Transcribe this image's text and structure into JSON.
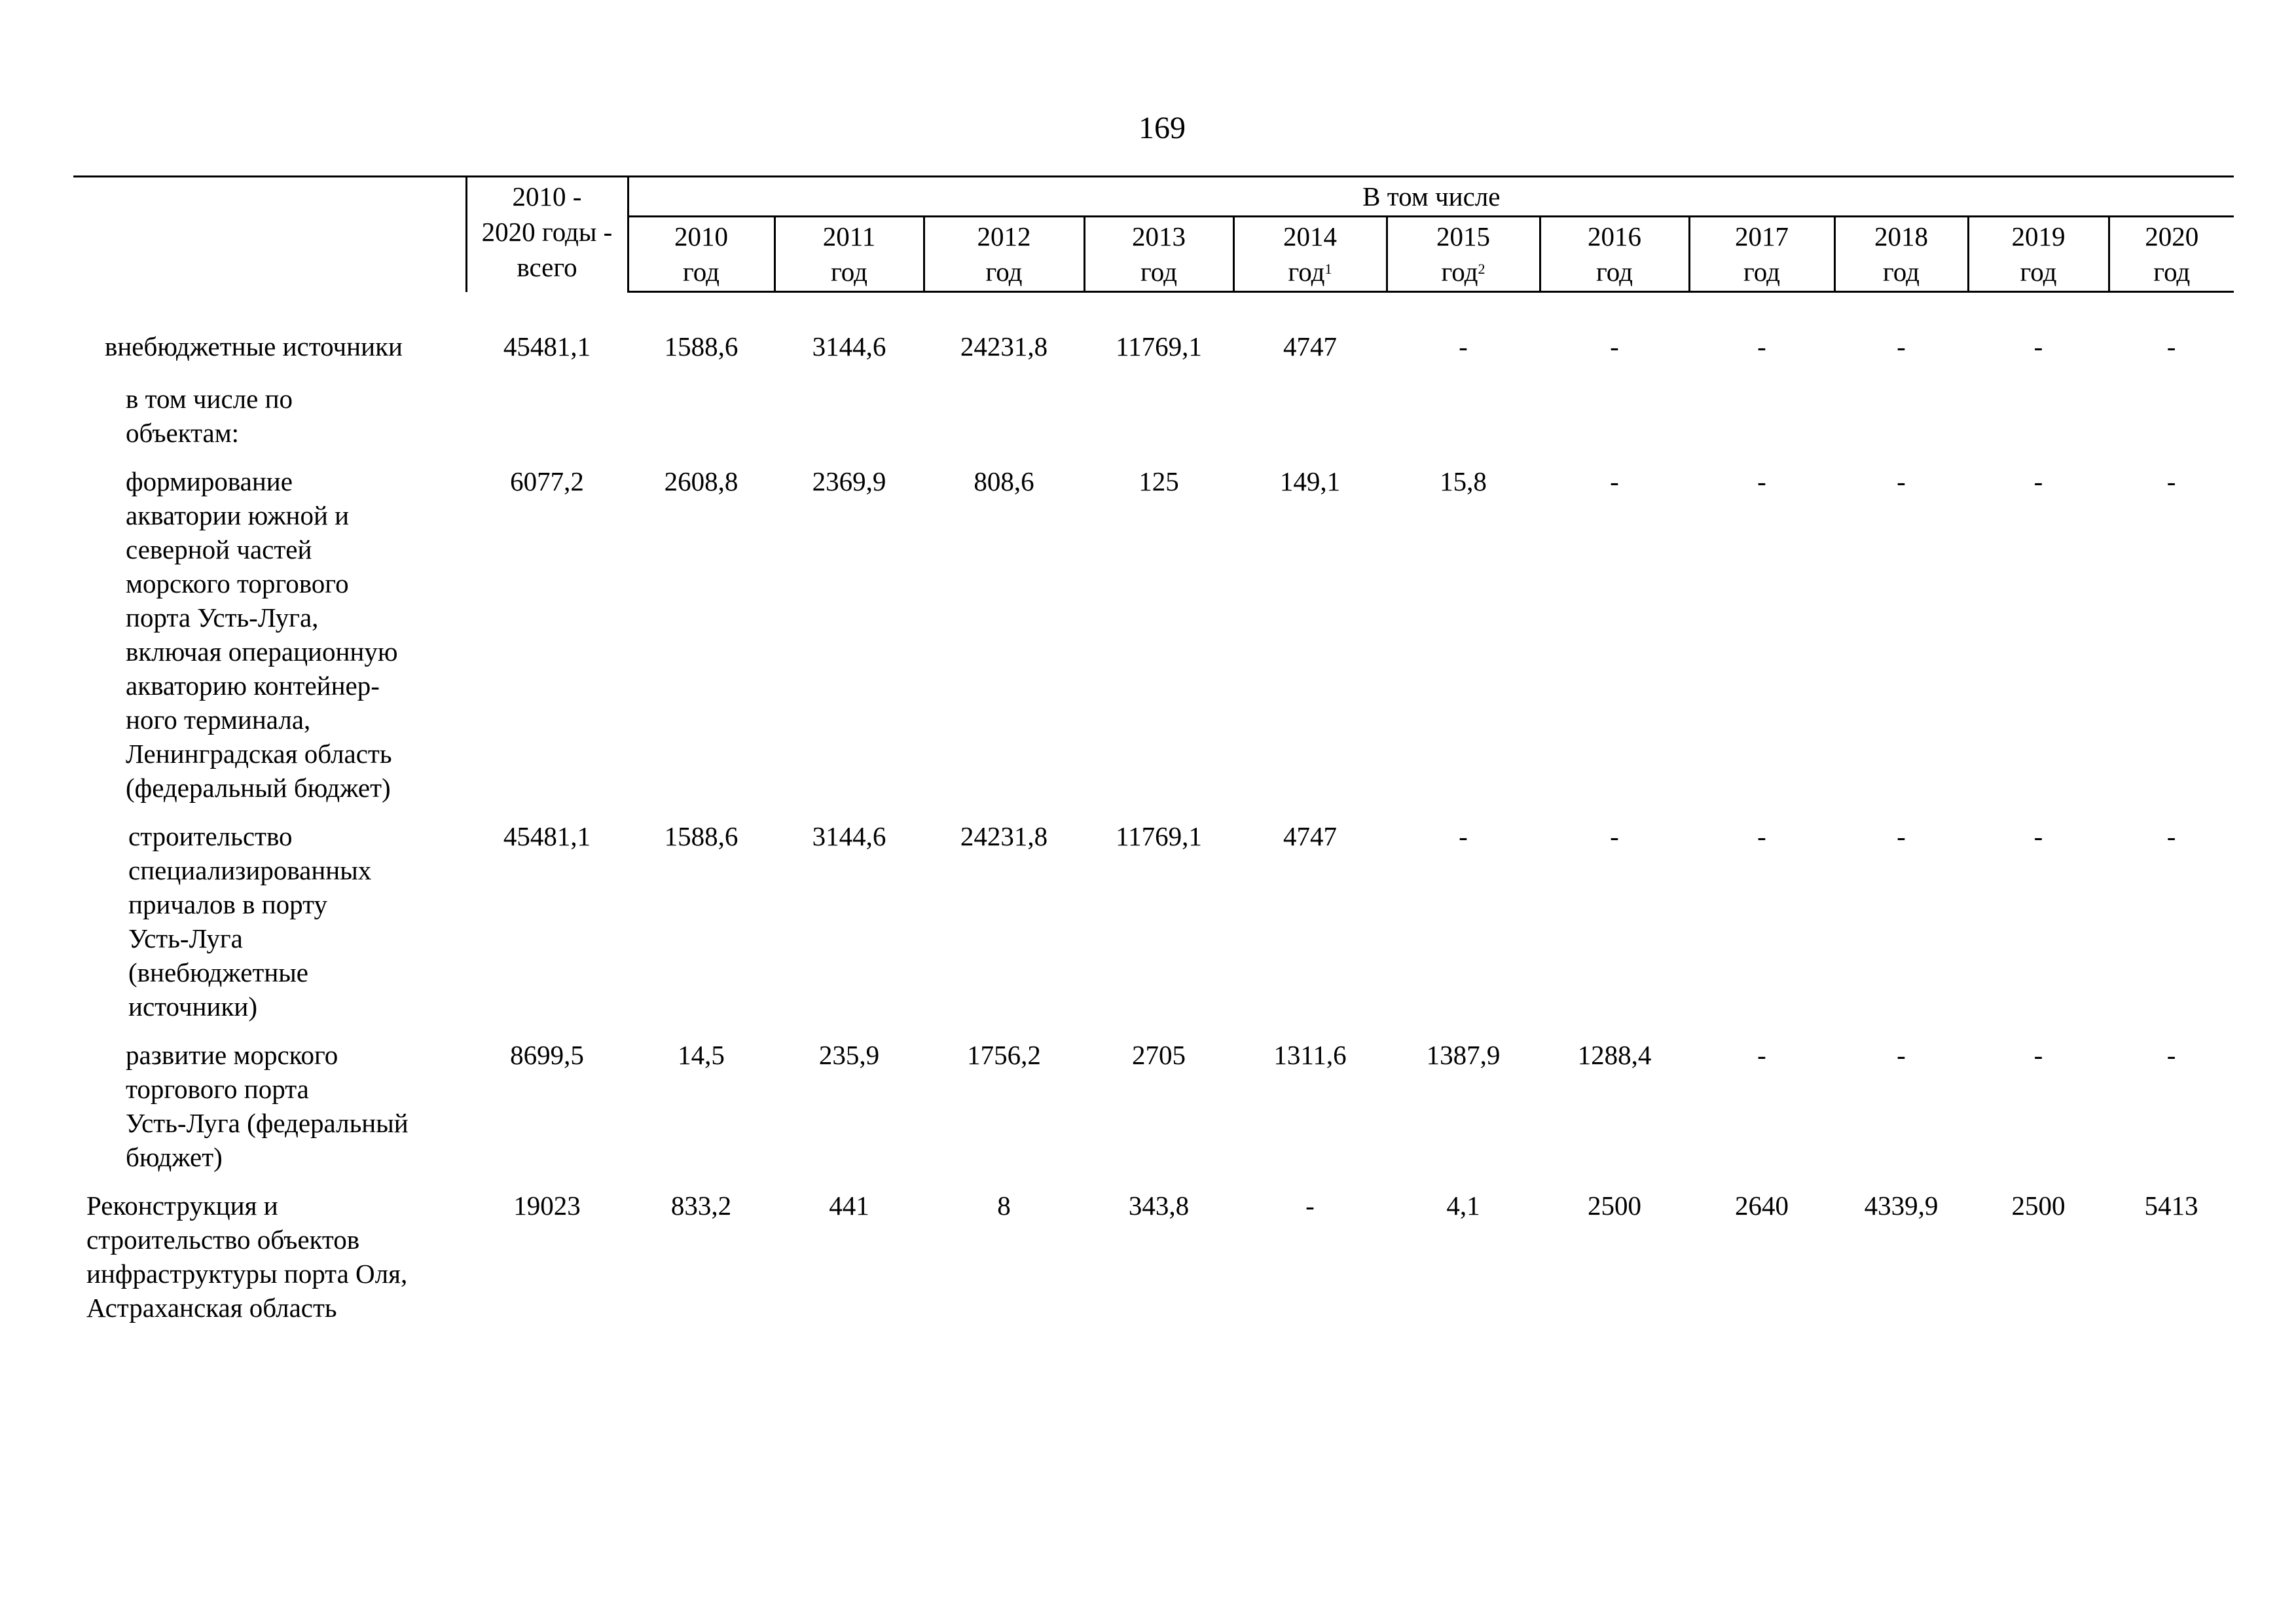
{
  "page_number": "169",
  "header": {
    "total_top": "2010 -",
    "total_mid": "2020 годы -",
    "total_bottom": "всего",
    "group": "В том числе",
    "years": [
      {
        "year": "2010",
        "unit": "год",
        "note": ""
      },
      {
        "year": "2011",
        "unit": "год",
        "note": ""
      },
      {
        "year": "2012",
        "unit": "год",
        "note": ""
      },
      {
        "year": "2013",
        "unit": "год",
        "note": ""
      },
      {
        "year": "2014",
        "unit": "год",
        "note": "1"
      },
      {
        "year": "2015",
        "unit": "год",
        "note": "2"
      },
      {
        "year": "2016",
        "unit": "год",
        "note": ""
      },
      {
        "year": "2017",
        "unit": "год",
        "note": ""
      },
      {
        "year": "2018",
        "unit": "год",
        "note": ""
      },
      {
        "year": "2019",
        "unit": "год",
        "note": ""
      },
      {
        "year": "2020",
        "unit": "год",
        "note": ""
      }
    ]
  },
  "rows": [
    {
      "label_lines": [
        "внебюджетные источники"
      ],
      "total": "45481,1",
      "values": [
        "1588,6",
        "3144,6",
        "24231,8",
        "11769,1",
        "4747",
        "-",
        "-",
        "-",
        "-",
        "-",
        "-"
      ]
    },
    {
      "label_lines": [
        "в том числе по",
        "объектам:"
      ],
      "total": "",
      "values": [
        "",
        "",
        "",
        "",
        "",
        "",
        "",
        "",
        "",
        "",
        ""
      ]
    },
    {
      "label_lines": [
        "формирование",
        "акватории южной и",
        "северной частей",
        "морского торгового",
        "порта Усть-Луга,",
        "включая операционную",
        "акваторию контейнер-",
        "ного терминала,",
        "Ленинградская область",
        "(федеральный бюджет)"
      ],
      "total": "6077,2",
      "values": [
        "2608,8",
        "2369,9",
        "808,6",
        "125",
        "149,1",
        "15,8",
        "-",
        "-",
        "-",
        "-",
        "-"
      ]
    },
    {
      "label_lines": [
        "строительство",
        "специализированных",
        "причалов в порту",
        "Усть-Луга",
        "(внебюджетные",
        "источники)"
      ],
      "total": "45481,1",
      "values": [
        "1588,6",
        "3144,6",
        "24231,8",
        "11769,1",
        "4747",
        "-",
        "-",
        "-",
        "-",
        "-",
        "-"
      ]
    },
    {
      "label_lines": [
        "развитие морского",
        "торгового порта",
        "Усть-Луга (федеральный",
        "бюджет)"
      ],
      "total": "8699,5",
      "values": [
        "14,5",
        "235,9",
        "1756,2",
        "2705",
        "1311,6",
        "1387,9",
        "1288,4",
        "-",
        "-",
        "-",
        "-"
      ]
    },
    {
      "label_lines": [
        "Реконструкция и",
        "строительство объектов",
        "инфраструктуры порта Оля,",
        "Астраханская область"
      ],
      "total": "19023",
      "values": [
        "833,2",
        "441",
        "8",
        "343,8",
        "-",
        "4,1",
        "2500",
        "2640",
        "4339,9",
        "2500",
        "5413"
      ]
    }
  ]
}
